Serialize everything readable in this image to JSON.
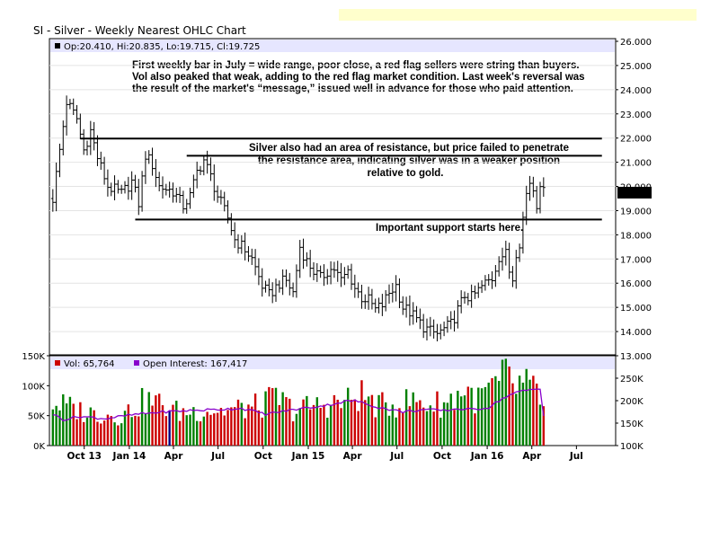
{
  "chart_data": {
    "type": "ohlc",
    "title": "SI - Silver - Weekly Nearest OHLC Chart",
    "colors": {
      "price_bar": "#000000",
      "volume_up": "#008000",
      "volume_down": "#cc0000",
      "volume_other": "#000080",
      "open_interest": "#8800cc",
      "panel_header": "#e6e6ff",
      "last_price_box": "#000000",
      "top_banner": "#ffffcc"
    },
    "price_panel": {
      "legend": "Op:20.410, Hi:20.835, Lo:19.715, Cl:19.725",
      "ylim": [
        13,
        26
      ],
      "y_ticks": [
        "26.000",
        "25.000",
        "24.000",
        "23.000",
        "22.000",
        "21.000",
        "20.000",
        "19.000",
        "18.000",
        "17.000",
        "16.000",
        "15.000",
        "14.000",
        "13.000"
      ],
      "last_price_label": "19.725",
      "levels": [
        {
          "value": 21.98,
          "from": "2013-09-23",
          "to": "2016-08-22"
        },
        {
          "value": 21.27,
          "from": "2014-04-28",
          "to": "2016-08-22"
        },
        {
          "value": 18.63,
          "from": "2014-01-13",
          "to": "2016-08-22"
        }
      ],
      "annotations": [
        "First weekly bar in July = wide range, poor close, a red flag sellers were string than buyers.",
        "Vol also peaked that weak, adding to the red flag market condition.  Last week's reversal was",
        "the result of the market's “message,” issued well in advance for those who paid attention.",
        "Silver also had an area of resistance, but price failed to penetrate",
        "the resistance area, indicating silver was in a weaker position",
        "relative to gold.",
        "Important support starts here."
      ]
    },
    "volume_panel": {
      "legend_vol": "Vol: 65,764",
      "legend_oi": "Open Interest: 167,417",
      "y_left_ticks": [
        "150K",
        "100K",
        "50K",
        "0K"
      ],
      "y_left_max": 150000,
      "y_right_ticks": [
        "250K",
        "200K",
        "150K",
        "100K"
      ],
      "y_right_range": [
        100000,
        300000
      ]
    },
    "x_ticks": [
      "Oct 13",
      "Jan 14",
      "Apr",
      "Jul",
      "Oct",
      "Jan 15",
      "Apr",
      "Jul",
      "Oct",
      "Jan 16",
      "Apr",
      "Jul"
    ],
    "x_tick_dates": [
      "2013-10-01",
      "2014-01-01",
      "2014-04-01",
      "2014-07-01",
      "2014-10-01",
      "2015-01-01",
      "2015-04-01",
      "2015-07-01",
      "2015-10-01",
      "2016-01-01",
      "2016-04-01",
      "2016-07-01"
    ],
    "x_range": [
      "2013-07-22",
      "2016-09-19"
    ],
    "first_bar_date": "2013-07-29",
    "week_days": 7,
    "close_path": [
      [
        0,
        19.5
      ],
      [
        4,
        23.5
      ],
      [
        7,
        22.8
      ],
      [
        9,
        21.5
      ],
      [
        11,
        22.3
      ],
      [
        13,
        21.2
      ],
      [
        16,
        20.0
      ],
      [
        20,
        19.7
      ],
      [
        23,
        20.2
      ],
      [
        25,
        19.3
      ],
      [
        27,
        21.3
      ],
      [
        29,
        20.9
      ],
      [
        31,
        20.0
      ],
      [
        35,
        19.8
      ],
      [
        38,
        19.2
      ],
      [
        40,
        19.6
      ],
      [
        42,
        20.6
      ],
      [
        44,
        21.1
      ],
      [
        46,
        20.4
      ],
      [
        48,
        19.6
      ],
      [
        51,
        18.7
      ],
      [
        53,
        17.8
      ],
      [
        56,
        17.4
      ],
      [
        58,
        17.0
      ],
      [
        61,
        15.9
      ],
      [
        63,
        15.5
      ],
      [
        66,
        16.0
      ],
      [
        68,
        16.1
      ],
      [
        70,
        15.6
      ],
      [
        72,
        17.5
      ],
      [
        74,
        16.9
      ],
      [
        76,
        16.5
      ],
      [
        78,
        16.2
      ],
      [
        80,
        16.5
      ],
      [
        82,
        16.6
      ],
      [
        84,
        16.1
      ],
      [
        86,
        16.5
      ],
      [
        88,
        15.8
      ],
      [
        90,
        15.4
      ],
      [
        92,
        15.3
      ],
      [
        94,
        14.9
      ],
      [
        96,
        15.1
      ],
      [
        98,
        15.6
      ],
      [
        100,
        15.9
      ],
      [
        102,
        15.0
      ],
      [
        104,
        14.8
      ],
      [
        106,
        14.5
      ],
      [
        108,
        14.2
      ],
      [
        110,
        14.0
      ],
      [
        112,
        13.9
      ],
      [
        114,
        14.1
      ],
      [
        116,
        14.3
      ],
      [
        118,
        14.9
      ],
      [
        120,
        15.5
      ],
      [
        122,
        15.4
      ],
      [
        124,
        15.7
      ],
      [
        126,
        16.0
      ],
      [
        128,
        16.2
      ],
      [
        130,
        17.1
      ],
      [
        132,
        17.2
      ],
      [
        133,
        16.5
      ],
      [
        134,
        16.2
      ],
      [
        135,
        17.3
      ],
      [
        136,
        17.7
      ],
      [
        137,
        18.7
      ],
      [
        138,
        19.7
      ],
      [
        139,
        20.2
      ],
      [
        140,
        19.9
      ],
      [
        141,
        19.3
      ],
      [
        142,
        20.2
      ],
      [
        143,
        19.725
      ]
    ],
    "volume_k_path": [
      [
        0,
        72
      ],
      [
        4,
        65
      ],
      [
        10,
        55
      ],
      [
        20,
        50
      ],
      [
        27,
        75
      ],
      [
        31,
        70
      ],
      [
        37,
        55
      ],
      [
        45,
        60
      ],
      [
        50,
        58
      ],
      [
        55,
        62
      ],
      [
        60,
        65
      ],
      [
        65,
        80
      ],
      [
        70,
        60
      ],
      [
        75,
        65
      ],
      [
        80,
        70
      ],
      [
        85,
        72
      ],
      [
        90,
        85
      ],
      [
        95,
        65
      ],
      [
        100,
        70
      ],
      [
        105,
        75
      ],
      [
        110,
        68
      ],
      [
        115,
        72
      ],
      [
        120,
        95
      ],
      [
        124,
        75
      ],
      [
        126,
        90
      ],
      [
        130,
        100
      ],
      [
        132,
        118
      ],
      [
        135,
        95
      ],
      [
        139,
        108
      ],
      [
        141,
        90
      ],
      [
        143,
        66
      ]
    ],
    "open_interest_k_path": [
      [
        0,
        170
      ],
      [
        3,
        158
      ],
      [
        8,
        165
      ],
      [
        15,
        160
      ],
      [
        25,
        170
      ],
      [
        32,
        175
      ],
      [
        40,
        178
      ],
      [
        47,
        180
      ],
      [
        55,
        183
      ],
      [
        62,
        170
      ],
      [
        70,
        180
      ],
      [
        75,
        185
      ],
      [
        80,
        190
      ],
      [
        85,
        198
      ],
      [
        88,
        200
      ],
      [
        95,
        185
      ],
      [
        102,
        175
      ],
      [
        108,
        180
      ],
      [
        114,
        178
      ],
      [
        118,
        182
      ],
      [
        122,
        180
      ],
      [
        127,
        185
      ],
      [
        131,
        205
      ],
      [
        134,
        215
      ],
      [
        137,
        222
      ],
      [
        140,
        225
      ],
      [
        142,
        228
      ],
      [
        143,
        167
      ]
    ]
  }
}
